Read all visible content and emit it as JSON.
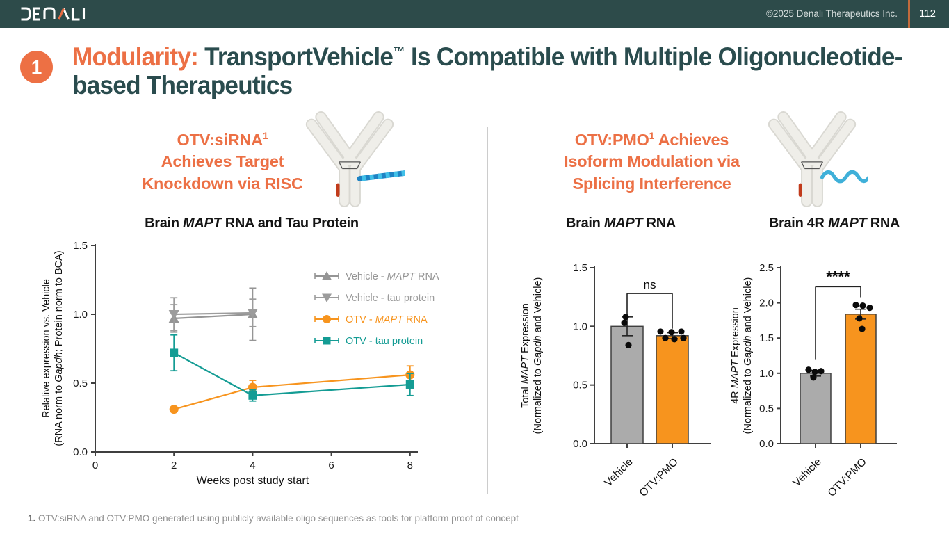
{
  "slide": {
    "header": {
      "logo_text": "DENALI",
      "copyright": "©2025 Denali Therapeutics Inc.",
      "page_number": "112"
    },
    "title": {
      "badge": "1",
      "highlight": "Modularity:",
      "main": " TransportVehicle",
      "trademark": "™",
      "rest": " Is Compatible with Multiple Oligonucleotide-based Therapeutics"
    },
    "left_panel": {
      "heading_line1": "OTV:siRNA",
      "heading_sup": "1",
      "heading_line2": "Achieves Target",
      "heading_line3": "Knockdown via RISC"
    },
    "right_panel": {
      "heading_line1": "OTV:PMO",
      "heading_sup": "1",
      "heading_line1_rest": " Achieves",
      "heading_line2": "Isoform Modulation via",
      "heading_line3": "Splicing Interference"
    },
    "footnote": {
      "marker": "1.",
      "text": " OTV:siRNA and OTV:PMO generated using publicly available oligo sequences as tools for platform proof of concept"
    }
  },
  "colors": {
    "header_bg": "#2d4b4a",
    "title_teal": "#2a4c4e",
    "accent_orange": "#ec7045",
    "chart_orange": "#f7941e",
    "series_teal": "#149c94",
    "series_gray": "#959595",
    "bar_gray": "#ababab",
    "axis": "#3f3f3f"
  },
  "chart_data": [
    {
      "type": "line",
      "title": {
        "pre": "Brain ",
        "italic": "MAPT",
        "post": " RNA and Tau Protein"
      },
      "xlabel": "Weeks post study start",
      "ylabel_line1": [
        {
          "t": "Relative expression vs. Vehicle",
          "i": false
        }
      ],
      "ylabel_line2": [
        {
          "t": "(RNA norm to ",
          "i": false
        },
        {
          "t": "Gapdh",
          "i": true
        },
        {
          "t": "; Protein norm to BCA)",
          "i": false
        }
      ],
      "xlim": [
        0,
        8.6
      ],
      "ylim": [
        0,
        1.5
      ],
      "xticks": [
        0,
        2,
        4,
        6,
        8
      ],
      "yticks": [
        "0.0",
        "0.5",
        "1.0",
        "1.5"
      ],
      "legend_position": "top-right",
      "series": [
        {
          "label": {
            "pre": "Vehicle - ",
            "italic": "MAPT",
            "post": " RNA"
          },
          "marker": "triangle-up",
          "color": "#959595",
          "x": [
            2,
            4
          ],
          "y": [
            0.97,
            1.0
          ],
          "err": [
            0.1,
            0.19
          ]
        },
        {
          "label": {
            "pre": "Vehicle - tau protein",
            "italic": "",
            "post": ""
          },
          "marker": "triangle-down",
          "color": "#9c9c9c",
          "x": [
            2,
            4
          ],
          "y": [
            1.0,
            1.01
          ],
          "err": [
            0.12,
            0.1
          ]
        },
        {
          "label": {
            "pre": "OTV - ",
            "italic": "MAPT",
            "post": " RNA"
          },
          "marker": "circle",
          "color": "#f7941e",
          "x": [
            2,
            4,
            8
          ],
          "y": [
            0.31,
            0.47,
            0.56
          ],
          "err": [
            0.015,
            0.05,
            0.065
          ]
        },
        {
          "label": {
            "pre": "OTV - tau protein",
            "italic": "",
            "post": ""
          },
          "marker": "square",
          "color": "#149c94",
          "x": [
            2,
            4,
            8
          ],
          "y": [
            0.72,
            0.41,
            0.49
          ],
          "err": [
            0.13,
            0.04,
            0.08
          ]
        }
      ]
    },
    {
      "type": "bar",
      "title": {
        "pre": "Brain ",
        "italic": "MAPT",
        "post": " RNA"
      },
      "ylabel_line1": [
        {
          "t": "Total ",
          "i": false
        },
        {
          "t": "MAPT",
          "i": true
        },
        {
          "t": " Expression",
          "i": false
        }
      ],
      "ylabel_line2": [
        {
          "t": "(Normalized to ",
          "i": false
        },
        {
          "t": "Gapdh",
          "i": true
        },
        {
          "t": " and Vehicle)",
          "i": false
        }
      ],
      "ylim": [
        0,
        1.5
      ],
      "yticks": [
        "0.0",
        "0.5",
        "1.0",
        "1.5"
      ],
      "categories": [
        "Vehicle",
        "OTV:PMO"
      ],
      "bars": [
        {
          "label": "Vehicle",
          "value": 1.0,
          "err": 0.08,
          "fill": "#ababab",
          "points": [
            {
              "v": 1.08,
              "dx": -2
            },
            {
              "v": 1.03,
              "dx": -4
            },
            {
              "v": 0.84,
              "dx": 2
            }
          ]
        },
        {
          "label": "OTV:PMO",
          "value": 0.92,
          "err": 0.025,
          "fill": "#f7941e",
          "points": [
            {
              "v": 0.955,
              "dx": -17
            },
            {
              "v": 0.95,
              "dx": -1
            },
            {
              "v": 0.955,
              "dx": 13
            },
            {
              "v": 0.9,
              "dx": -10
            },
            {
              "v": 0.89,
              "dx": 3
            },
            {
              "v": 0.9,
              "dx": 16
            }
          ]
        }
      ],
      "sig": {
        "label": "ns",
        "bar_y": 1.28,
        "left_drop": 1.1,
        "right_drop": 0.98
      }
    },
    {
      "type": "bar",
      "title": {
        "pre": "Brain 4R ",
        "italic": "MAPT",
        "post": " RNA"
      },
      "ylabel_line1": [
        {
          "t": "4R ",
          "i": false
        },
        {
          "t": "MAPT",
          "i": true
        },
        {
          "t": " Expression",
          "i": false
        }
      ],
      "ylabel_line2": [
        {
          "t": "(Normalized to ",
          "i": false
        },
        {
          "t": "Gapdh",
          "i": true
        },
        {
          "t": " and Vehicle)",
          "i": false
        }
      ],
      "ylim": [
        0,
        2.5
      ],
      "yticks": [
        "0.0",
        "0.5",
        "1.0",
        "1.5",
        "2.0",
        "2.5"
      ],
      "categories": [
        "Vehicle",
        "OTV:PMO"
      ],
      "bars": [
        {
          "label": "Vehicle",
          "value": 1.0,
          "err": 0.04,
          "fill": "#ababab",
          "points": [
            {
              "v": 1.05,
              "dx": -10
            },
            {
              "v": 1.03,
              "dx": 8
            },
            {
              "v": 1.02,
              "dx": -1
            },
            {
              "v": 0.94,
              "dx": -3
            }
          ]
        },
        {
          "label": "OTV:PMO",
          "value": 1.84,
          "err": 0.07,
          "fill": "#f7941e",
          "points": [
            {
              "v": 1.97,
              "dx": -7
            },
            {
              "v": 1.96,
              "dx": 3
            },
            {
              "v": 1.93,
              "dx": 13
            },
            {
              "v": 1.78,
              "dx": -2
            },
            {
              "v": 1.63,
              "dx": 2
            }
          ]
        }
      ],
      "sig": {
        "label": "****",
        "bar_y": 2.23,
        "left_drop": 1.19,
        "right_drop": 2.08
      }
    }
  ]
}
